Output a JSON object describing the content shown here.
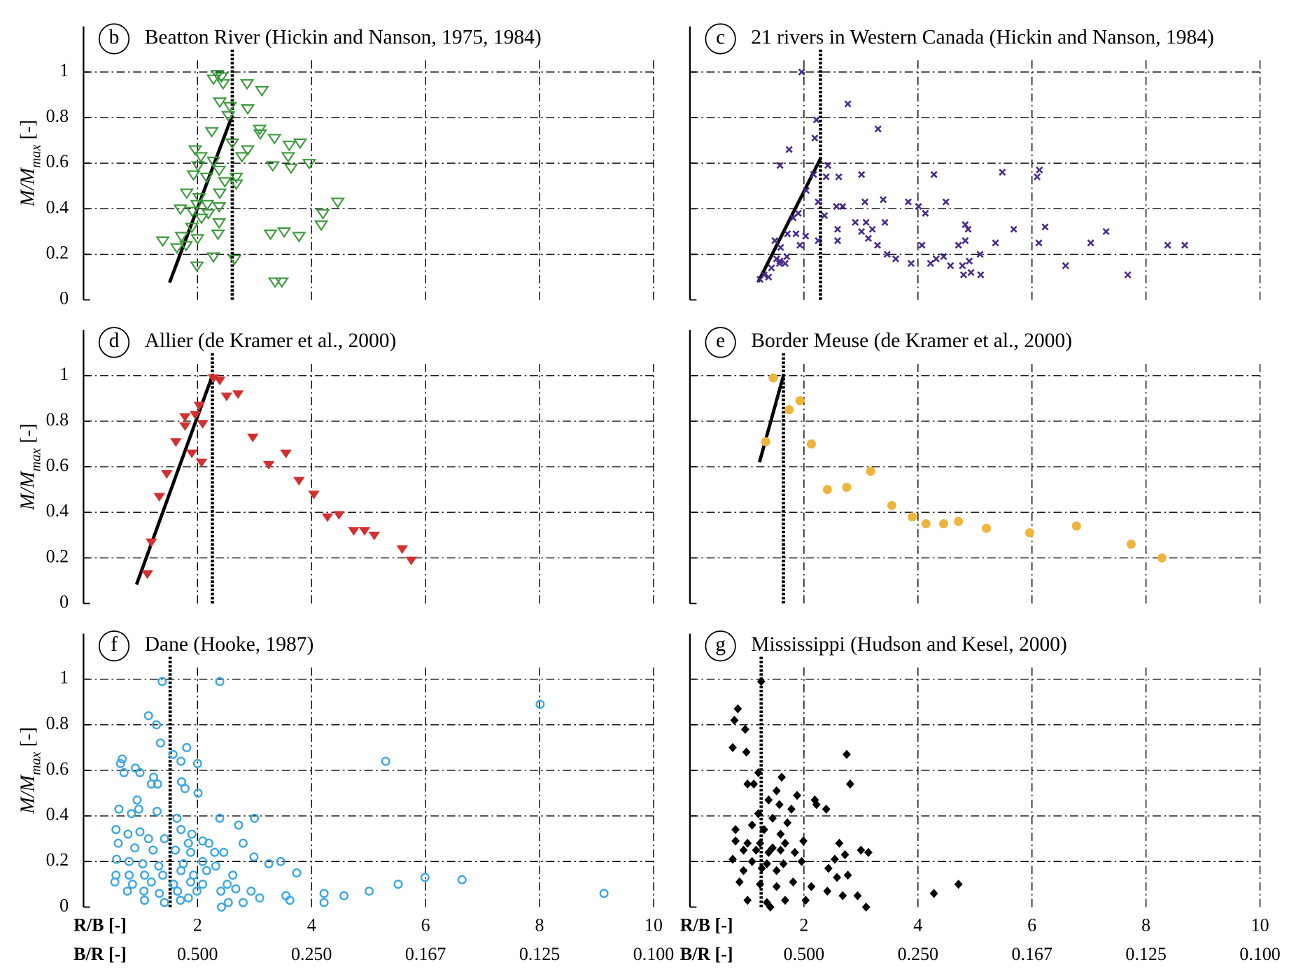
{
  "chart_data": [
    {
      "type": "scatter",
      "panel": "b",
      "title": "Beatton River (Hickin and Nanson, 1975, 1984)",
      "ylabel": [
        "M/M",
        "max",
        " [-]"
      ],
      "marker": "triangle-down-open",
      "color": "#3c9a3c",
      "xlim": [
        0,
        10
      ],
      "ylim": [
        0,
        1.2
      ],
      "xticks": [
        2,
        4,
        6,
        8,
        10
      ],
      "yticks": [
        0,
        0.2,
        0.4,
        0.6,
        0.8,
        1
      ],
      "grid": true,
      "threshold": 2.61,
      "fit_line": {
        "x": [
          1.51,
          2.61
        ],
        "y": [
          0.076,
          0.81
        ]
      },
      "x": [
        2.35,
        2.42,
        2.28,
        2.45,
        2.57,
        2.54,
        2.87,
        3.13,
        2.88,
        2.39,
        2.25,
        2.61,
        3.09,
        3.1,
        3.35,
        3.61,
        3.8,
        3.96,
        3.59,
        2.88,
        2.78,
        1.96,
        2.06,
        2.28,
        2.38,
        2.68,
        3.32,
        3.64,
        2.01,
        2.16,
        2.48,
        2.68,
        1.93,
        1.81,
        2.03,
        2.39,
        1.99,
        2.17,
        2.38,
        1.91,
        2.19,
        1.7,
        2.07,
        2.38,
        1.9,
        2.0,
        2.36,
        1.39,
        1.72,
        1.64,
        1.8,
        2.28,
        2.65,
        1.99,
        3.28,
        3.52,
        3.78,
        4.2,
        4.46,
        4.17,
        3.36,
        3.48
      ],
      "values": [
        0.99,
        0.98,
        0.97,
        0.95,
        0.85,
        0.81,
        0.95,
        0.92,
        0.84,
        0.87,
        0.74,
        0.69,
        0.75,
        0.73,
        0.71,
        0.68,
        0.69,
        0.6,
        0.63,
        0.66,
        0.63,
        0.66,
        0.63,
        0.61,
        0.57,
        0.54,
        0.59,
        0.58,
        0.59,
        0.54,
        0.52,
        0.51,
        0.55,
        0.47,
        0.45,
        0.47,
        0.42,
        0.42,
        0.41,
        0.39,
        0.38,
        0.4,
        0.36,
        0.34,
        0.32,
        0.27,
        0.29,
        0.26,
        0.28,
        0.23,
        0.24,
        0.19,
        0.18,
        0.15,
        0.29,
        0.3,
        0.28,
        0.38,
        0.43,
        0.33,
        0.08,
        0.08
      ]
    },
    {
      "type": "scatter",
      "panel": "c",
      "title": "21 rivers in Western Canada (Hickin and Nanson, 1984)",
      "marker": "cross",
      "color": "#4a2a8a",
      "xlim": [
        0,
        10
      ],
      "ylim": [
        0,
        1.2
      ],
      "xticks": [
        2,
        4,
        6,
        8,
        10
      ],
      "yticks": [
        0,
        0.2,
        0.4,
        0.6,
        0.8,
        1
      ],
      "grid": true,
      "threshold": 2.29,
      "fit_line": {
        "x": [
          1.2,
          2.29
        ],
        "y": [
          0.08,
          0.62
        ]
      },
      "x": [
        1.96,
        2.77,
        3.3,
        2.22,
        1.74,
        2.19,
        2.42,
        2.39,
        2.61,
        2.17,
        1.58,
        2.04,
        2.25,
        2.68,
        3.07,
        3.39,
        3.83,
        4.01,
        4.13,
        4.49,
        4.28,
        3.01,
        5.48,
        6.13,
        6.09,
        6.23,
        5.68,
        6.12,
        7.3,
        7.03,
        6.59,
        7.68,
        8.38,
        8.68,
        4.83,
        4.88,
        4.83,
        5.36,
        4.71,
        4.45,
        4.07,
        3.88,
        4.22,
        4.32,
        4.57,
        4.78,
        4.9,
        5.09,
        4.8,
        4.93,
        5.1,
        3.61,
        3.46,
        3.29,
        3.13,
        3.01,
        3.09,
        3.2,
        3.42,
        2.9,
        2.59,
        2.36,
        2.57,
        2.59,
        2.25,
        2.03,
        1.86,
        1.93,
        1.71,
        1.59,
        1.7,
        1.52,
        1.67,
        1.58,
        1.49,
        1.43,
        1.3,
        1.23,
        1.38,
        1.81,
        1.9,
        1.57
      ],
      "values": [
        1.0,
        0.86,
        0.75,
        0.79,
        0.66,
        0.71,
        0.59,
        0.54,
        0.54,
        0.55,
        0.59,
        0.48,
        0.43,
        0.41,
        0.43,
        0.44,
        0.43,
        0.41,
        0.38,
        0.43,
        0.55,
        0.55,
        0.56,
        0.57,
        0.54,
        0.32,
        0.31,
        0.25,
        0.3,
        0.25,
        0.15,
        0.11,
        0.24,
        0.24,
        0.33,
        0.31,
        0.26,
        0.25,
        0.24,
        0.19,
        0.24,
        0.16,
        0.16,
        0.18,
        0.15,
        0.15,
        0.17,
        0.2,
        0.11,
        0.12,
        0.11,
        0.18,
        0.2,
        0.24,
        0.27,
        0.3,
        0.34,
        0.31,
        0.34,
        0.34,
        0.31,
        0.37,
        0.41,
        0.26,
        0.26,
        0.28,
        0.29,
        0.24,
        0.29,
        0.23,
        0.19,
        0.18,
        0.16,
        0.17,
        0.26,
        0.14,
        0.11,
        0.09,
        0.1,
        0.36,
        0.38,
        0.16
      ]
    },
    {
      "type": "scatter",
      "panel": "d",
      "title": "Allier (de Kramer et al., 2000)",
      "ylabel": [
        "M/M",
        "max",
        " [-]"
      ],
      "marker": "triangle-down",
      "color": "#d42f2f",
      "xlim": [
        0,
        10
      ],
      "ylim": [
        0,
        1.2
      ],
      "xticks": [
        2,
        4,
        6,
        8,
        10
      ],
      "yticks": [
        0,
        0.2,
        0.4,
        0.6,
        0.8,
        1
      ],
      "grid": true,
      "threshold": 2.26,
      "fit_line": {
        "x": [
          0.93,
          2.26
        ],
        "y": [
          0.083,
          1.0
        ]
      },
      "x": [
        2.28,
        2.39,
        2.71,
        2.51,
        2.03,
        1.96,
        1.78,
        2.09,
        1.78,
        1.62,
        1.9,
        2.07,
        1.46,
        1.33,
        1.19,
        1.12,
        2.97,
        3.55,
        3.25,
        3.78,
        4.04,
        4.28,
        4.48,
        4.74,
        4.93,
        5.1,
        5.59,
        5.75
      ],
      "values": [
        0.99,
        0.98,
        0.92,
        0.91,
        0.87,
        0.83,
        0.82,
        0.79,
        0.78,
        0.71,
        0.66,
        0.62,
        0.57,
        0.47,
        0.27,
        0.13,
        0.73,
        0.66,
        0.61,
        0.54,
        0.48,
        0.38,
        0.39,
        0.32,
        0.32,
        0.3,
        0.24,
        0.19
      ]
    },
    {
      "type": "scatter",
      "panel": "e",
      "title": "Border Meuse (de Kramer et al., 2000)",
      "marker": "circle",
      "color": "#eeb43c",
      "xlim": [
        0,
        10
      ],
      "ylim": [
        0,
        1.2
      ],
      "xticks": [
        2,
        4,
        6,
        8,
        10
      ],
      "yticks": [
        0,
        0.2,
        0.4,
        0.6,
        0.8,
        1
      ],
      "grid": true,
      "threshold": 1.64,
      "fit_line": {
        "x": [
          1.22,
          1.64
        ],
        "y": [
          0.62,
          1.0
        ]
      },
      "x": [
        1.46,
        1.33,
        1.74,
        1.93,
        2.13,
        2.41,
        2.75,
        3.17,
        3.54,
        3.9,
        4.14,
        4.45,
        4.71,
        5.2,
        5.96,
        6.78,
        7.74,
        8.28
      ],
      "values": [
        0.99,
        0.71,
        0.85,
        0.89,
        0.7,
        0.5,
        0.51,
        0.58,
        0.43,
        0.38,
        0.35,
        0.35,
        0.36,
        0.33,
        0.31,
        0.34,
        0.26,
        0.2
      ]
    },
    {
      "type": "scatter",
      "panel": "f",
      "title": "Dane (Hooke, 1987)",
      "ylabel": [
        "M/M",
        "max",
        " [-]"
      ],
      "marker": "circle-open",
      "color": "#3aa6e2",
      "xlabel": "R/B [-]",
      "x2label": "B/R [-]",
      "xlim": [
        0,
        10
      ],
      "ylim": [
        0,
        1.2
      ],
      "xticks": [
        2,
        4,
        6,
        8,
        10
      ],
      "yticks": [
        0,
        0.2,
        0.4,
        0.6,
        0.8,
        1
      ],
      "grid": true,
      "threshold": 1.52,
      "x2ticks": [
        {
          "value": 2,
          "label": "0.500"
        },
        {
          "value": 4,
          "label": "0.250"
        },
        {
          "value": 6,
          "label": "0.167"
        },
        {
          "value": 8,
          "label": "0.125"
        },
        {
          "value": 10,
          "label": "0.100"
        }
      ],
      "x": [
        1.38,
        2.39,
        8.01,
        1.14,
        1.28,
        1.35,
        1.81,
        1.57,
        1.71,
        2.0,
        5.3,
        0.68,
        0.65,
        0.71,
        0.91,
        0.99,
        1.23,
        1.3,
        1.19,
        1.72,
        1.78,
        2.01,
        0.62,
        0.94,
        0.97,
        0.84,
        1.29,
        1.64,
        2.39,
        3.0,
        2.72,
        1.71,
        1.9,
        0.57,
        0.78,
        0.99,
        1.14,
        1.42,
        1.84,
        2.09,
        2.2,
        2.8,
        0.61,
        0.9,
        1.22,
        1.61,
        1.88,
        2.3,
        2.46,
        2.99,
        3.25,
        3.46,
        0.58,
        0.8,
        1.04,
        1.32,
        1.75,
        2.09,
        2.32,
        0.57,
        0.8,
        1.07,
        1.39,
        1.71,
        1.93,
        2.16,
        2.62,
        3.74,
        5.99,
        6.64,
        5.52,
        0.55,
        0.86,
        1.19,
        1.58,
        1.88,
        2.09,
        2.52,
        2.67,
        0.77,
        1.06,
        1.33,
        1.65,
        1.99,
        2.41,
        2.94,
        3.09,
        3.55,
        4.22,
        4.57,
        5.01,
        9.13,
        1.07,
        1.42,
        1.7,
        2.54,
        2.8,
        3.62,
        4.22,
        2.42,
        1.84
      ],
      "values": [
        0.99,
        0.99,
        0.89,
        0.84,
        0.8,
        0.72,
        0.7,
        0.67,
        0.64,
        0.63,
        0.64,
        0.65,
        0.63,
        0.59,
        0.61,
        0.59,
        0.57,
        0.54,
        0.54,
        0.55,
        0.52,
        0.5,
        0.43,
        0.47,
        0.43,
        0.41,
        0.42,
        0.39,
        0.39,
        0.39,
        0.36,
        0.34,
        0.32,
        0.34,
        0.32,
        0.33,
        0.3,
        0.3,
        0.28,
        0.29,
        0.28,
        0.28,
        0.28,
        0.26,
        0.25,
        0.25,
        0.24,
        0.24,
        0.24,
        0.22,
        0.19,
        0.2,
        0.21,
        0.2,
        0.19,
        0.18,
        0.19,
        0.2,
        0.18,
        0.14,
        0.14,
        0.14,
        0.14,
        0.16,
        0.14,
        0.16,
        0.14,
        0.15,
        0.13,
        0.12,
        0.1,
        0.11,
        0.1,
        0.11,
        0.1,
        0.11,
        0.1,
        0.1,
        0.08,
        0.07,
        0.07,
        0.06,
        0.07,
        0.07,
        0.07,
        0.07,
        0.04,
        0.05,
        0.06,
        0.05,
        0.07,
        0.06,
        0.03,
        0.02,
        0.03,
        0.02,
        0.02,
        0.03,
        0.02,
        0.0,
        0.04
      ]
    },
    {
      "type": "scatter",
      "panel": "g",
      "title": "Mississippi (Hudson and Kesel, 2000)",
      "marker": "diamond",
      "color": "#000000",
      "xlabel": "R/B [-]",
      "x2label": "B/R [-]",
      "xlim": [
        0,
        10
      ],
      "ylim": [
        0,
        1.2
      ],
      "xticks": [
        2,
        4,
        6,
        8,
        10
      ],
      "yticks": [
        0,
        0.2,
        0.4,
        0.6,
        0.8,
        1
      ],
      "grid": true,
      "threshold": 1.25,
      "x2ticks": [
        {
          "value": 2,
          "label": "0.500"
        },
        {
          "value": 4,
          "label": "0.250"
        },
        {
          "value": 6,
          "label": "0.167"
        },
        {
          "value": 8,
          "label": "0.125"
        },
        {
          "value": 10,
          "label": "0.100"
        }
      ],
      "x": [
        1.25,
        0.84,
        0.78,
        0.97,
        0.75,
        0.99,
        2.75,
        2.81,
        1.01,
        1.12,
        1.2,
        1.61,
        1.52,
        1.88,
        2.19,
        2.22,
        2.39,
        1.38,
        1.57,
        1.78,
        1.2,
        1.45,
        1.71,
        1.09,
        0.8,
        1.3,
        1.59,
        0.8,
        1.01,
        1.23,
        1.45,
        1.67,
        1.99,
        0.94,
        1.16,
        1.38,
        1.59,
        1.84,
        2.62,
        3.0,
        3.13,
        2.72,
        0.75,
        1.09,
        1.35,
        1.64,
        1.96,
        2.54,
        0.94,
        1.26,
        1.52,
        2.43,
        2.77,
        2.58,
        4.71,
        4.28,
        0.87,
        1.23,
        1.52,
        1.81,
        2.13,
        2.41,
        2.68,
        2.94,
        1.01,
        1.35,
        1.67,
        2.03,
        3.09,
        1.41
      ],
      "values": [
        0.99,
        0.87,
        0.82,
        0.78,
        0.7,
        0.68,
        0.67,
        0.54,
        0.54,
        0.54,
        0.59,
        0.57,
        0.51,
        0.49,
        0.47,
        0.45,
        0.43,
        0.47,
        0.45,
        0.43,
        0.41,
        0.39,
        0.37,
        0.36,
        0.34,
        0.34,
        0.32,
        0.29,
        0.28,
        0.28,
        0.26,
        0.28,
        0.29,
        0.25,
        0.25,
        0.24,
        0.25,
        0.24,
        0.28,
        0.25,
        0.24,
        0.23,
        0.21,
        0.2,
        0.19,
        0.19,
        0.2,
        0.21,
        0.16,
        0.17,
        0.16,
        0.17,
        0.14,
        0.13,
        0.1,
        0.06,
        0.11,
        0.1,
        0.09,
        0.11,
        0.09,
        0.07,
        0.05,
        0.05,
        0.03,
        0.02,
        0.03,
        0.03,
        0.0,
        0.0
      ]
    }
  ]
}
